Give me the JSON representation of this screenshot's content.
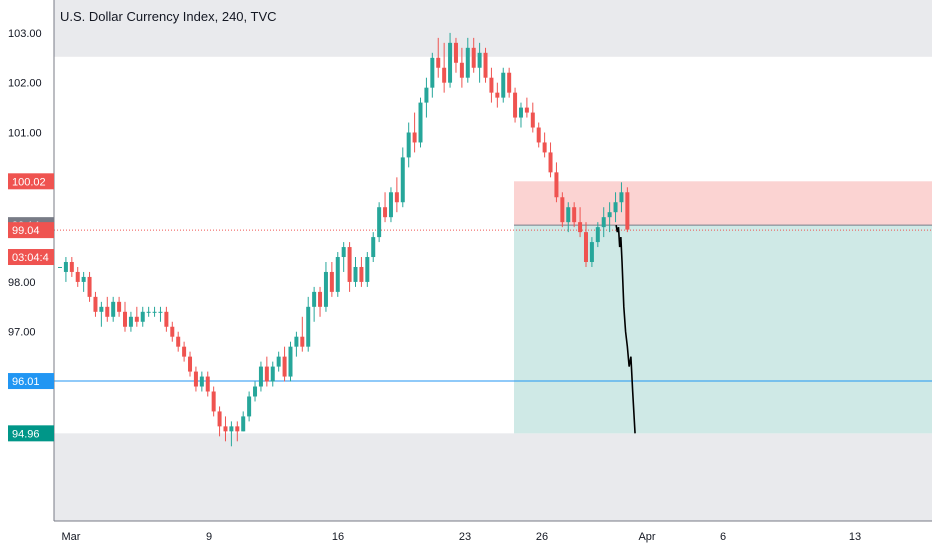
{
  "chart_data": {
    "type": "candlestick",
    "title": "U.S. Dollar Currency Index, 240, TVC",
    "x_ticks": [
      "Mar",
      "9",
      "16",
      "23",
      "26",
      "Apr",
      "6",
      "13"
    ],
    "y_ticks": [
      "103.00",
      "102.00",
      "101.00",
      "98.00",
      "97.00"
    ],
    "ylim": [
      93.2,
      103.6
    ],
    "colors": {
      "up": "#26a69a",
      "down": "#ef5350",
      "target_line": "#2196f3",
      "stop_zone": "#fbd3d2",
      "target_zone": "#cfe9e6",
      "grey_band": "#e9eaed"
    },
    "price_tags": [
      {
        "label": "100.02",
        "value": 100.02,
        "color": "#ef5350"
      },
      {
        "label": "99.14",
        "value": 99.14,
        "color": "#787b86"
      },
      {
        "label": "99.04",
        "value": 99.04,
        "color": "#ef5350"
      },
      {
        "label": "03:04:4",
        "value": 98.5,
        "color": "#ef5350"
      },
      {
        "label": "96.01",
        "value": 96.01,
        "color": "#2196f3"
      },
      {
        "label": "94.96",
        "value": 94.96,
        "color": "#009688"
      }
    ],
    "position": {
      "entry": 99.14,
      "stop": 100.02,
      "target": 94.96
    },
    "target_level": 96.01,
    "last_price": 99.04,
    "projection_path": [
      [
        99.1,
        99.14
      ],
      [
        99.3,
        99.0
      ],
      [
        99.5,
        99.1
      ],
      [
        99.7,
        98.7
      ],
      [
        99.9,
        98.9
      ],
      [
        100.1,
        98.4
      ],
      [
        100.4,
        97.5
      ],
      [
        100.7,
        97.0
      ],
      [
        101.0,
        96.7
      ],
      [
        101.3,
        96.3
      ],
      [
        101.6,
        96.5
      ],
      [
        101.9,
        95.8
      ],
      [
        102.3,
        94.96
      ]
    ],
    "candles": [
      [
        98.3,
        98.3,
        98.3,
        98.3
      ],
      [
        98.2,
        98.5,
        98.0,
        98.4
      ],
      [
        98.4,
        98.5,
        98.1,
        98.2
      ],
      [
        98.2,
        98.3,
        97.9,
        98.0
      ],
      [
        98.0,
        98.2,
        97.8,
        98.1
      ],
      [
        98.1,
        98.2,
        97.6,
        97.7
      ],
      [
        97.7,
        97.8,
        97.3,
        97.4
      ],
      [
        97.4,
        97.6,
        97.1,
        97.5
      ],
      [
        97.5,
        97.7,
        97.2,
        97.3
      ],
      [
        97.3,
        97.7,
        97.2,
        97.6
      ],
      [
        97.6,
        97.7,
        97.3,
        97.4
      ],
      [
        97.4,
        97.6,
        97.0,
        97.1
      ],
      [
        97.1,
        97.4,
        97.0,
        97.3
      ],
      [
        97.3,
        97.5,
        97.1,
        97.2
      ],
      [
        97.2,
        97.5,
        97.1,
        97.4
      ],
      [
        97.4,
        97.5,
        97.3,
        97.4
      ],
      [
        97.4,
        97.5,
        97.3,
        97.4
      ],
      [
        97.4,
        97.5,
        97.2,
        97.4
      ],
      [
        97.4,
        97.5,
        97.0,
        97.1
      ],
      [
        97.1,
        97.2,
        96.8,
        96.9
      ],
      [
        96.9,
        97.0,
        96.6,
        96.7
      ],
      [
        96.7,
        96.8,
        96.4,
        96.5
      ],
      [
        96.5,
        96.6,
        96.1,
        96.2
      ],
      [
        96.2,
        96.3,
        95.8,
        95.9
      ],
      [
        95.9,
        96.2,
        95.8,
        96.1
      ],
      [
        96.1,
        96.2,
        95.7,
        95.8
      ],
      [
        95.8,
        95.9,
        95.3,
        95.4
      ],
      [
        95.4,
        95.5,
        94.9,
        95.1
      ],
      [
        95.1,
        95.3,
        94.8,
        95.0
      ],
      [
        95.0,
        95.2,
        94.7,
        95.1
      ],
      [
        95.1,
        95.2,
        94.8,
        95.0
      ],
      [
        95.0,
        95.4,
        95.0,
        95.3
      ],
      [
        95.3,
        95.8,
        95.2,
        95.7
      ],
      [
        95.7,
        96.0,
        95.6,
        95.9
      ],
      [
        95.9,
        96.4,
        95.8,
        96.3
      ],
      [
        96.3,
        96.5,
        95.9,
        96.0
      ],
      [
        96.0,
        96.4,
        95.9,
        96.3
      ],
      [
        96.3,
        96.6,
        96.2,
        96.5
      ],
      [
        96.5,
        96.7,
        96.0,
        96.1
      ],
      [
        96.1,
        96.8,
        96.0,
        96.7
      ],
      [
        96.7,
        97.0,
        96.5,
        96.9
      ],
      [
        96.9,
        97.3,
        96.6,
        96.7
      ],
      [
        96.7,
        97.7,
        96.6,
        97.5
      ],
      [
        97.5,
        97.9,
        97.2,
        97.8
      ],
      [
        97.8,
        97.9,
        97.3,
        97.5
      ],
      [
        97.5,
        98.4,
        97.4,
        98.2
      ],
      [
        98.2,
        98.4,
        97.7,
        97.8
      ],
      [
        97.8,
        98.6,
        97.7,
        98.5
      ],
      [
        98.5,
        98.8,
        98.2,
        98.7
      ],
      [
        98.7,
        98.8,
        97.8,
        98.0
      ],
      [
        98.0,
        98.5,
        97.9,
        98.3
      ],
      [
        98.3,
        98.5,
        97.9,
        98.0
      ],
      [
        98.0,
        98.6,
        97.9,
        98.5
      ],
      [
        98.5,
        99.0,
        98.4,
        98.9
      ],
      [
        98.9,
        99.6,
        98.8,
        99.5
      ],
      [
        99.5,
        99.8,
        99.2,
        99.3
      ],
      [
        99.3,
        99.9,
        99.2,
        99.8
      ],
      [
        99.8,
        100.1,
        99.4,
        99.6
      ],
      [
        99.6,
        100.7,
        99.5,
        100.5
      ],
      [
        100.5,
        101.2,
        100.3,
        101.0
      ],
      [
        101.0,
        101.4,
        100.6,
        100.8
      ],
      [
        100.8,
        101.7,
        100.7,
        101.6
      ],
      [
        101.6,
        102.1,
        101.3,
        101.9
      ],
      [
        101.9,
        102.6,
        101.7,
        102.5
      ],
      [
        102.5,
        102.9,
        102.1,
        102.3
      ],
      [
        102.3,
        102.8,
        101.8,
        102.0
      ],
      [
        102.0,
        103.0,
        101.9,
        102.8
      ],
      [
        102.8,
        102.9,
        102.2,
        102.4
      ],
      [
        102.4,
        102.7,
        101.9,
        102.1
      ],
      [
        102.1,
        102.9,
        102.0,
        102.7
      ],
      [
        102.7,
        102.9,
        102.2,
        102.3
      ],
      [
        102.3,
        102.8,
        102.0,
        102.6
      ],
      [
        102.6,
        102.7,
        102.0,
        102.1
      ],
      [
        102.1,
        102.3,
        101.6,
        101.8
      ],
      [
        101.8,
        102.0,
        101.5,
        101.7
      ],
      [
        101.7,
        102.3,
        101.6,
        102.2
      ],
      [
        102.2,
        102.3,
        101.7,
        101.8
      ],
      [
        101.8,
        101.9,
        101.2,
        101.3
      ],
      [
        101.3,
        101.6,
        101.1,
        101.5
      ],
      [
        101.5,
        101.7,
        101.3,
        101.4
      ],
      [
        101.4,
        101.6,
        101.0,
        101.1
      ],
      [
        101.1,
        101.2,
        100.7,
        100.8
      ],
      [
        100.8,
        101.0,
        100.5,
        100.6
      ],
      [
        100.6,
        100.8,
        100.1,
        100.2
      ],
      [
        100.2,
        100.4,
        99.6,
        99.7
      ],
      [
        99.7,
        99.8,
        99.1,
        99.2
      ],
      [
        99.2,
        99.6,
        99.0,
        99.5
      ],
      [
        99.5,
        99.6,
        99.1,
        99.2
      ],
      [
        99.2,
        99.5,
        98.9,
        99.0
      ],
      [
        99.0,
        99.2,
        98.3,
        98.4
      ],
      [
        98.4,
        98.9,
        98.3,
        98.8
      ],
      [
        98.8,
        99.2,
        98.7,
        99.1
      ],
      [
        99.1,
        99.5,
        98.9,
        99.3
      ],
      [
        99.3,
        99.6,
        99.0,
        99.4
      ],
      [
        99.4,
        99.8,
        99.2,
        99.6
      ],
      [
        99.6,
        100.0,
        99.4,
        99.8
      ],
      [
        99.8,
        99.9,
        99.0,
        99.05
      ]
    ]
  }
}
